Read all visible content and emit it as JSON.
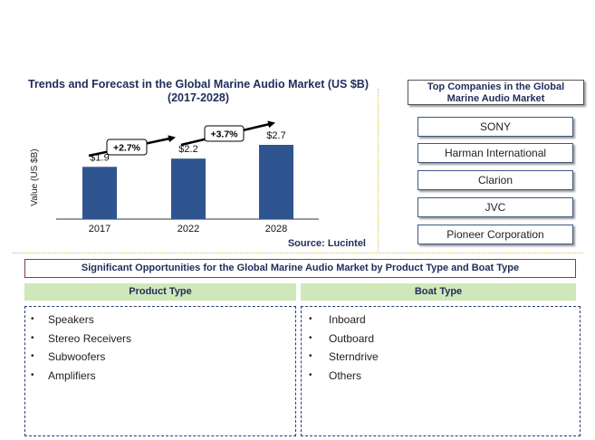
{
  "chart_data": {
    "type": "bar",
    "title": "Trends and Forecast in the Global Marine Audio Market (US $B) (2017-2028)",
    "title_lines": [
      "Trends and Forecast in the Global Marine Audio Market (US $B)",
      "(2017-2028)"
    ],
    "ylabel": "Value (US $B)",
    "xlabel": "",
    "categories": [
      "2017",
      "2022",
      "2028"
    ],
    "values": [
      1.9,
      2.2,
      2.7
    ],
    "value_labels": [
      "$1.9",
      "$2.2",
      "$2.7"
    ],
    "growth_labels": [
      "+2.7%",
      "+3.7%"
    ],
    "ylim": [
      0,
      3.1
    ],
    "grid": false,
    "bar_color": "#2f5590",
    "source": "Source: Lucintel"
  },
  "companies": {
    "title": "Top Companies in the Global Marine Audio Market",
    "title_lines": [
      "Top Companies in the Global",
      "Marine Audio  Market"
    ],
    "items": [
      "SONY",
      "Harman International",
      "Clarion",
      "JVC",
      "Pioneer Corporation"
    ]
  },
  "opportunities": {
    "title": "Significant Opportunities for the Global Marine Audio Market by Product Type and Boat Type",
    "product": {
      "header": "Product Type",
      "items": [
        "Speakers",
        "Stereo Receivers",
        "Subwoofers",
        "Amplifiers"
      ]
    },
    "boat": {
      "header": "Boat  Type",
      "items": [
        "Inboard",
        "Outboard",
        "Sterndrive",
        "Others"
      ]
    },
    "bullet": "•"
  },
  "colors": {
    "header_green": "#cfe8b9",
    "title_navy": "#1f2d5a",
    "divider_gold": "#d8c23a"
  }
}
